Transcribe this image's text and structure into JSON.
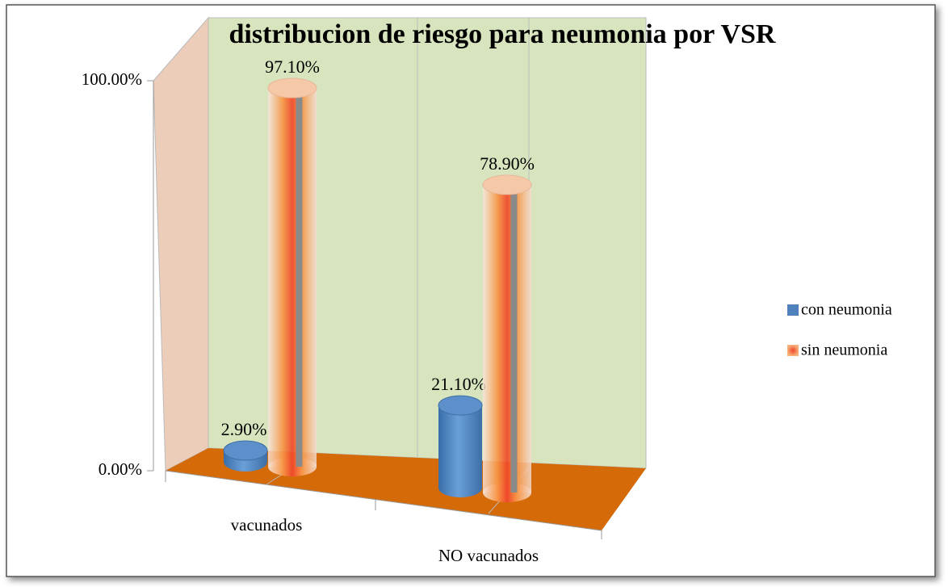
{
  "chart_data": {
    "type": "bar3d",
    "title": "distribucion de riesgo para  neumonia por VSR",
    "categories": [
      "vacunados",
      "NO vacunados"
    ],
    "series": [
      {
        "name": "con neumonia",
        "color": "#4f81bd",
        "values": [
          2.9,
          21.1
        ],
        "value_labels": [
          "2.90%",
          "21.10%"
        ]
      },
      {
        "name": "sin neumonia",
        "color": "#f79646",
        "values": [
          97.1,
          78.9
        ],
        "value_labels": [
          "97.10%",
          "78.90%"
        ]
      }
    ],
    "ylim": [
      0,
      100
    ],
    "yticks": [
      {
        "value": 0,
        "label": "0.00%"
      },
      {
        "value": 100,
        "label": "100.00%"
      }
    ],
    "legend": "right"
  }
}
